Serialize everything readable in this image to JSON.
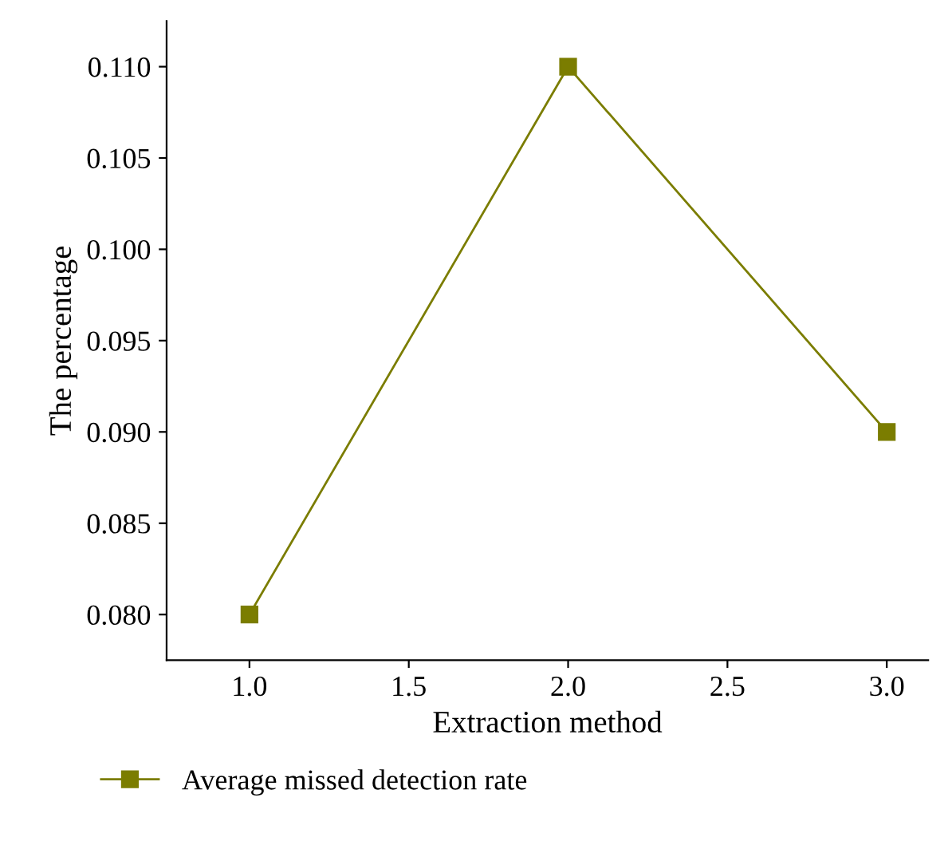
{
  "chart_data": {
    "type": "line",
    "xlabel": "Extraction method",
    "ylabel": "The percentage",
    "x": [
      1.0,
      2.0,
      3.0
    ],
    "series": [
      {
        "name": "Average missed detection rate",
        "color": "#7b7d00",
        "values": [
          0.08,
          0.11,
          0.09
        ]
      }
    ],
    "xlim": [
      0.74,
      3.13
    ],
    "ylim": [
      0.0775,
      0.1125
    ],
    "xticks": [
      {
        "value": 1.0,
        "label": "1.0"
      },
      {
        "value": 1.5,
        "label": "1.5"
      },
      {
        "value": 2.0,
        "label": "2.0"
      },
      {
        "value": 2.5,
        "label": "2.5"
      },
      {
        "value": 3.0,
        "label": "3.0"
      }
    ],
    "yticks": [
      {
        "value": 0.08,
        "label": "0.080"
      },
      {
        "value": 0.085,
        "label": "0.085"
      },
      {
        "value": 0.09,
        "label": "0.090"
      },
      {
        "value": 0.095,
        "label": "0.095"
      },
      {
        "value": 0.1,
        "label": "0.100"
      },
      {
        "value": 0.105,
        "label": "0.105"
      },
      {
        "value": 0.11,
        "label": "0.110"
      }
    ],
    "marker": "square",
    "line_style": "solid",
    "legend": "bottom left",
    "grid": false
  }
}
